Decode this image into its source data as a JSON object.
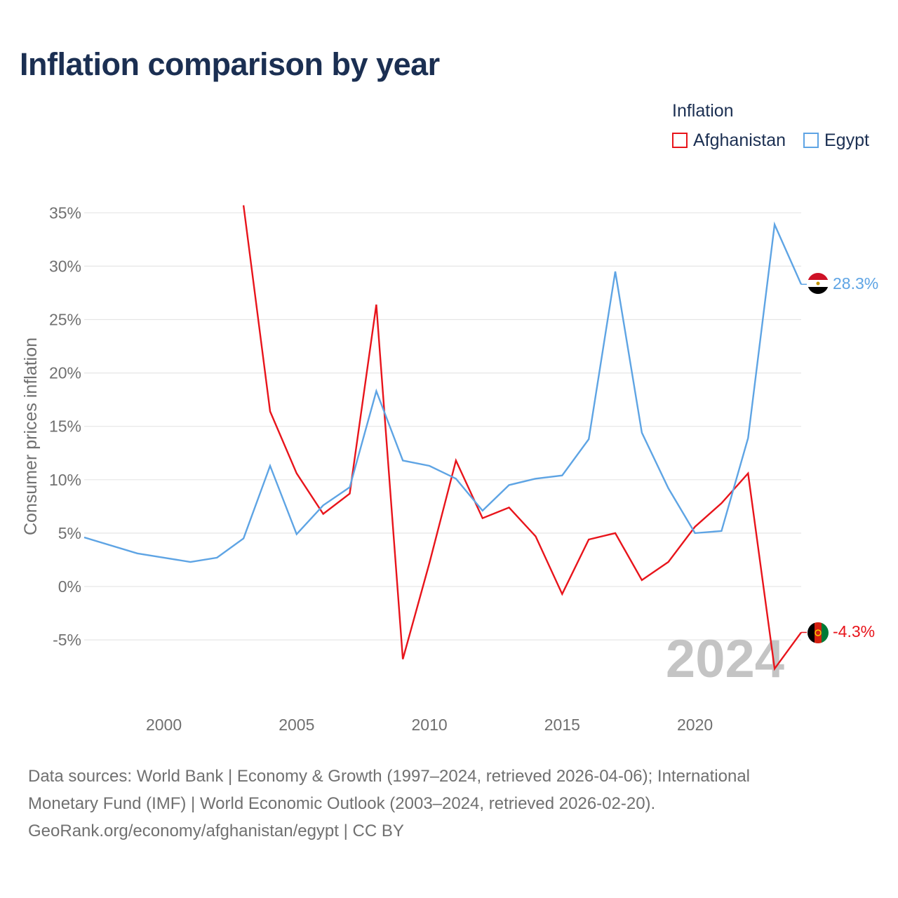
{
  "title": "Inflation comparison by year",
  "legend": {
    "title": "Inflation",
    "items": [
      {
        "label": "Afghanistan",
        "color": "#e8141b"
      },
      {
        "label": "Egypt",
        "color": "#5ea4e4"
      }
    ]
  },
  "year_watermark": "2024",
  "source_lines": [
    "Data sources: World Bank | Economy & Growth (1997–2024, retrieved 2026-04-06); International",
    "Monetary Fund (IMF) | World Economic Outlook (2003–2024, retrieved 2026-02-20).",
    "GeoRank.org/economy/afghanistan/egypt | CC BY"
  ],
  "chart_data": {
    "type": "line",
    "title": "Inflation comparison by year",
    "xlabel": "",
    "ylabel": "Consumer prices inflation",
    "xlim": [
      1997,
      2024
    ],
    "ylim": [
      -10,
      35
    ],
    "x_ticks": [
      2000,
      2005,
      2010,
      2015,
      2020
    ],
    "y_ticks": [
      35,
      30,
      25,
      20,
      15,
      10,
      5,
      0,
      -5
    ],
    "y_tick_labels": [
      "35%",
      "30%",
      "25%",
      "20%",
      "15%",
      "10%",
      "5%",
      "0%",
      "-5%"
    ],
    "legend_position": "top-right",
    "series": [
      {
        "name": "Afghanistan",
        "color": "#e8141b",
        "end_label": "-4.3%",
        "points": [
          [
            2003,
            35.7
          ],
          [
            2004,
            16.4
          ],
          [
            2005,
            10.6
          ],
          [
            2006,
            6.8
          ],
          [
            2007,
            8.7
          ],
          [
            2008,
            26.4
          ],
          [
            2009,
            -6.8
          ],
          [
            2010,
            2.2
          ],
          [
            2011,
            11.8
          ],
          [
            2012,
            6.4
          ],
          [
            2013,
            7.4
          ],
          [
            2014,
            4.7
          ],
          [
            2015,
            -0.7
          ],
          [
            2016,
            4.4
          ],
          [
            2017,
            5.0
          ],
          [
            2018,
            0.6
          ],
          [
            2019,
            2.3
          ],
          [
            2020,
            5.6
          ],
          [
            2021,
            7.8
          ],
          [
            2022,
            10.6
          ],
          [
            2023,
            -7.7
          ],
          [
            2024,
            -4.3
          ]
        ]
      },
      {
        "name": "Egypt",
        "color": "#5ea4e4",
        "end_label": "28.3%",
        "points": [
          [
            1997,
            4.6
          ],
          [
            1999,
            3.1
          ],
          [
            2000,
            2.7
          ],
          [
            2001,
            2.3
          ],
          [
            2002,
            2.7
          ],
          [
            2003,
            4.5
          ],
          [
            2004,
            11.3
          ],
          [
            2005,
            4.9
          ],
          [
            2006,
            7.6
          ],
          [
            2007,
            9.3
          ],
          [
            2008,
            18.3
          ],
          [
            2009,
            11.8
          ],
          [
            2010,
            11.3
          ],
          [
            2011,
            10.1
          ],
          [
            2012,
            7.1
          ],
          [
            2013,
            9.5
          ],
          [
            2014,
            10.1
          ],
          [
            2015,
            10.4
          ],
          [
            2016,
            13.8
          ],
          [
            2017,
            29.5
          ],
          [
            2018,
            14.4
          ],
          [
            2019,
            9.2
          ],
          [
            2020,
            5.0
          ],
          [
            2021,
            5.2
          ],
          [
            2022,
            13.9
          ],
          [
            2023,
            33.9
          ],
          [
            2024,
            28.3
          ]
        ]
      }
    ]
  }
}
